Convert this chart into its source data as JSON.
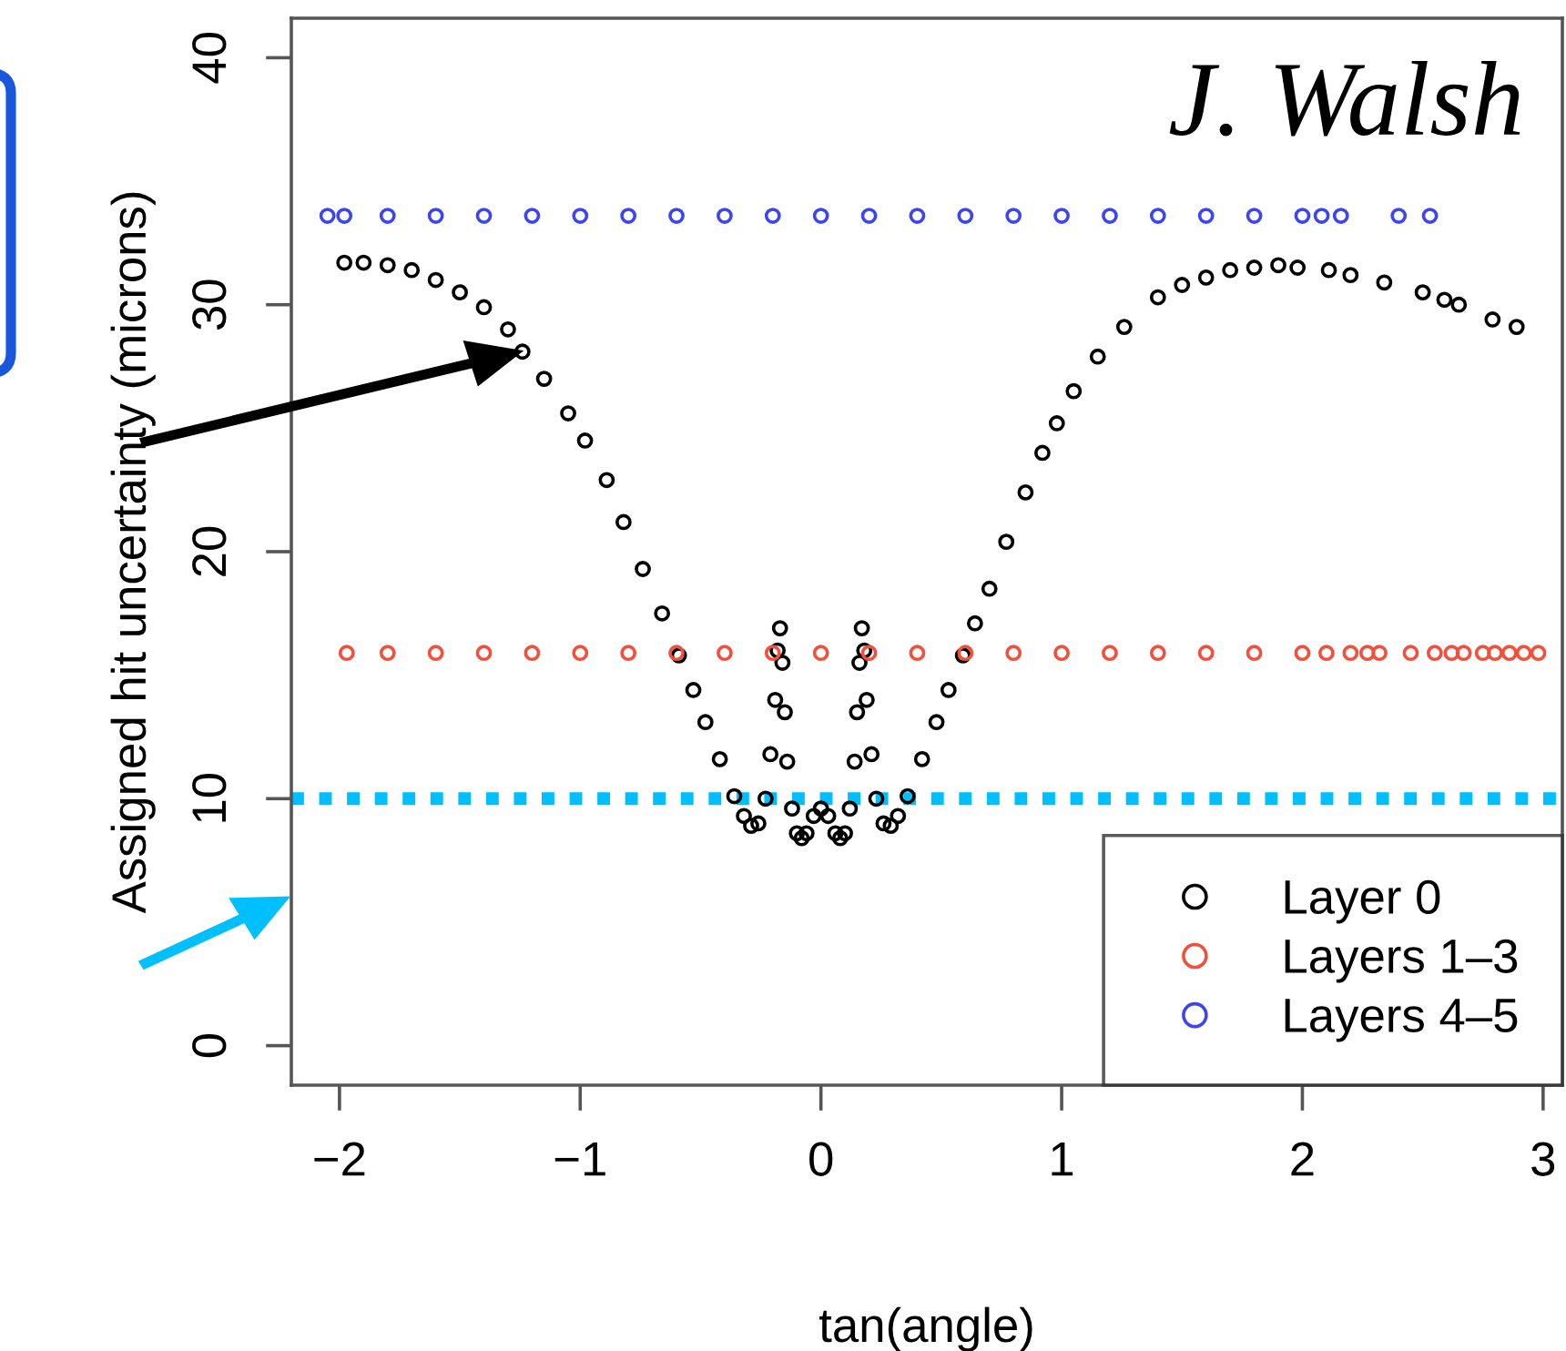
{
  "chart_data": {
    "type": "scatter",
    "xlabel": "tan(angle)",
    "ylabel": "Assigned hit uncertainty (microns)",
    "xlim": [
      -2.2,
      3.08
    ],
    "ylim": [
      -1.6,
      41.6
    ],
    "xticks": [
      {
        "value": -2,
        "label": "−2"
      },
      {
        "value": -1,
        "label": "−1"
      },
      0,
      1,
      2,
      3
    ],
    "yticks": [
      0,
      10,
      20,
      30,
      40
    ],
    "grid": false,
    "legend": "bottom right",
    "marker": "circle",
    "series": [
      {
        "name": "Layer 0",
        "color": "#000000",
        "x": [
          -1.98,
          -1.9,
          -1.8,
          -1.7,
          -1.6,
          -1.5,
          -1.4,
          -1.3,
          -1.24,
          -1.15,
          -1.05,
          -0.98,
          -0.89,
          -0.82,
          -0.74,
          -0.66,
          -0.59,
          -0.53,
          -0.48,
          -0.42,
          -0.36,
          -0.32,
          -0.29,
          -0.26,
          -0.23,
          -0.21,
          -0.19,
          -0.18,
          -0.17,
          -0.16,
          -0.15,
          -0.14,
          -0.12,
          -0.1,
          -0.08,
          -0.06,
          -0.03,
          0.0,
          0.03,
          0.06,
          0.08,
          0.1,
          0.12,
          0.14,
          0.15,
          0.16,
          0.17,
          0.18,
          0.19,
          0.21,
          0.23,
          0.26,
          0.29,
          0.32,
          0.36,
          0.42,
          0.48,
          0.53,
          0.59,
          0.64,
          0.7,
          0.77,
          0.85,
          0.92,
          0.98,
          1.05,
          1.15,
          1.26,
          1.4,
          1.5,
          1.6,
          1.7,
          1.8,
          1.9,
          1.98,
          2.11,
          2.2,
          2.34,
          2.5,
          2.59,
          2.65,
          2.79,
          2.89
        ],
        "values": [
          31.7,
          31.7,
          31.6,
          31.4,
          31.0,
          30.5,
          29.9,
          29.0,
          28.1,
          27.0,
          25.6,
          24.5,
          22.9,
          21.2,
          19.3,
          17.5,
          15.8,
          14.4,
          13.1,
          11.6,
          10.1,
          9.3,
          8.9,
          9.0,
          10.0,
          11.8,
          14.0,
          16.0,
          16.9,
          15.5,
          13.5,
          11.5,
          9.6,
          8.6,
          8.4,
          8.6,
          9.3,
          9.6,
          9.3,
          8.6,
          8.4,
          8.6,
          9.6,
          11.5,
          13.5,
          15.5,
          16.9,
          16.0,
          14.0,
          11.8,
          10.0,
          9.0,
          8.9,
          9.3,
          10.1,
          11.6,
          13.1,
          14.4,
          15.8,
          17.1,
          18.5,
          20.4,
          22.4,
          24.0,
          25.2,
          26.5,
          27.9,
          29.1,
          30.3,
          30.8,
          31.1,
          31.4,
          31.5,
          31.6,
          31.5,
          31.4,
          31.2,
          30.9,
          30.5,
          30.2,
          30.0,
          29.4,
          29.1
        ]
      },
      {
        "name": "Layers 1–3",
        "color": "#f0503c",
        "x": [
          -1.97,
          -1.8,
          -1.6,
          -1.4,
          -1.2,
          -1.0,
          -0.8,
          -0.6,
          -0.4,
          -0.2,
          0.0,
          0.2,
          0.4,
          0.6,
          0.8,
          1.0,
          1.2,
          1.4,
          1.6,
          1.8,
          2.0,
          2.1,
          2.2,
          2.27,
          2.32,
          2.45,
          2.55,
          2.62,
          2.67,
          2.75,
          2.8,
          2.86,
          2.92,
          2.98
        ],
        "values": [
          15.9,
          15.9,
          15.9,
          15.9,
          15.9,
          15.9,
          15.9,
          15.9,
          15.9,
          15.9,
          15.9,
          15.9,
          15.9,
          15.9,
          15.9,
          15.9,
          15.9,
          15.9,
          15.9,
          15.9,
          15.9,
          15.9,
          15.9,
          15.9,
          15.9,
          15.9,
          15.9,
          15.9,
          15.9,
          15.9,
          15.9,
          15.9,
          15.9,
          15.9
        ]
      },
      {
        "name": "Layers 4–5",
        "color": "#3c46f0",
        "x": [
          -2.05,
          -1.98,
          -1.8,
          -1.6,
          -1.4,
          -1.2,
          -1.0,
          -0.8,
          -0.6,
          -0.4,
          -0.2,
          0.0,
          0.2,
          0.4,
          0.6,
          0.8,
          1.0,
          1.2,
          1.4,
          1.6,
          1.8,
          2.0,
          2.08,
          2.16,
          2.4,
          2.53
        ],
        "values": [
          33.6,
          33.6,
          33.6,
          33.6,
          33.6,
          33.6,
          33.6,
          33.6,
          33.6,
          33.6,
          33.6,
          33.6,
          33.6,
          33.6,
          33.6,
          33.6,
          33.6,
          33.6,
          33.6,
          33.6,
          33.6,
          33.6,
          33.6,
          33.6,
          33.6,
          33.6
        ]
      }
    ],
    "ref_lines": [
      {
        "axis": "y",
        "value": 10,
        "color": "#00bfff",
        "line_style": "dotted"
      }
    ],
    "annotations": [
      "J. Walsh"
    ]
  }
}
